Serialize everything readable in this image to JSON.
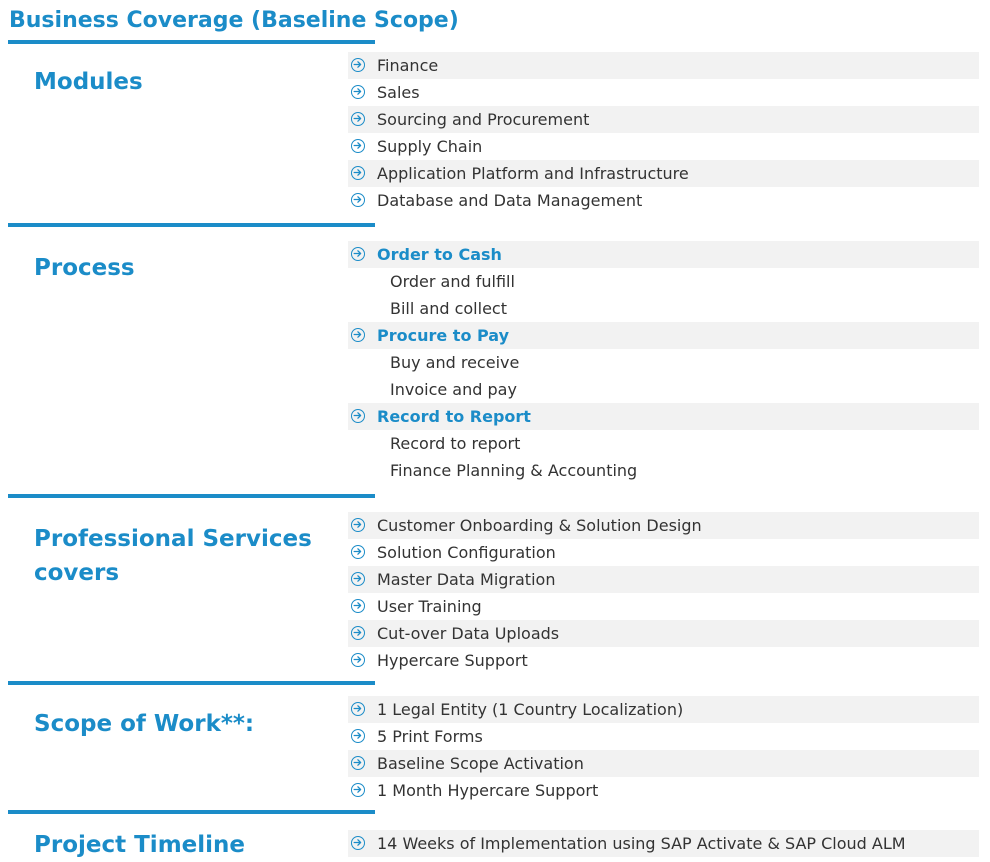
{
  "title": "Business Coverage (Baseline Scope)",
  "icon": "circle-arrow-right-icon",
  "accent_color": "#1b8cc8",
  "row_shade_color": "#f2f2f2",
  "sections": {
    "modules": {
      "label": "Modules",
      "items": [
        "Finance",
        "Sales",
        "Sourcing and Procurement",
        "Supply Chain",
        "Application Platform and Infrastructure",
        "Database and Data Management"
      ]
    },
    "process": {
      "label": "Process",
      "groups": [
        {
          "title": "Order to Cash",
          "items": [
            "Order and fulfill",
            "Bill and collect"
          ]
        },
        {
          "title": "Procure to Pay",
          "items": [
            "Buy and receive",
            "Invoice and pay"
          ]
        },
        {
          "title": "Record to Report",
          "items": [
            "Record to report",
            "Finance Planning & Accounting"
          ]
        }
      ]
    },
    "services": {
      "label_line1": "Professional Services",
      "label_line2": "covers",
      "items": [
        "Customer Onboarding & Solution Design",
        "Solution Configuration",
        "Master Data Migration",
        "User Training",
        "Cut-over Data Uploads",
        "Hypercare Support"
      ]
    },
    "scope": {
      "label": "Scope of Work**:",
      "items": [
        "1 Legal Entity (1 Country Localization)",
        "5 Print Forms",
        "Baseline Scope Activation",
        "1 Month Hypercare Support"
      ]
    },
    "timeline": {
      "label": "Project Timeline",
      "items": [
        "14 Weeks of Implementation using SAP Activate & SAP Cloud ALM"
      ]
    }
  }
}
